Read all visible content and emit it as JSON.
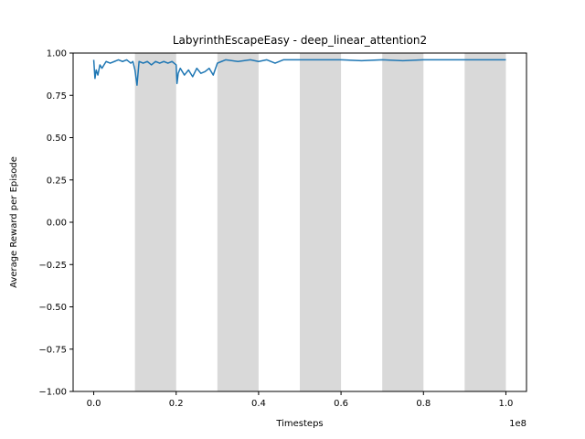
{
  "chart_data": {
    "type": "line",
    "title": "LabyrinthEscapeEasy - deep_linear_attention2",
    "xlabel": "Timesteps",
    "ylabel": "Average Reward per Episode",
    "x_multiplier_label": "1e8",
    "xlim": [
      -0.05,
      1.05
    ],
    "ylim": [
      -1.0,
      1.0
    ],
    "x_ticks": [
      0.0,
      0.2,
      0.4,
      0.6,
      0.8,
      1.0
    ],
    "x_tick_labels": [
      "0.0",
      "0.2",
      "0.4",
      "0.6",
      "0.8",
      "1.0"
    ],
    "y_ticks": [
      -1.0,
      -0.75,
      -0.5,
      -0.25,
      0.0,
      0.25,
      0.5,
      0.75,
      1.0
    ],
    "y_tick_labels": [
      "−1.00",
      "−0.75",
      "−0.50",
      "−0.25",
      "0.00",
      "0.25",
      "0.50",
      "0.75",
      "1.00"
    ],
    "grid": false,
    "shaded_regions": [
      [
        0.1,
        0.2
      ],
      [
        0.3,
        0.4
      ],
      [
        0.5,
        0.6
      ],
      [
        0.7,
        0.8
      ],
      [
        0.9,
        1.0
      ]
    ],
    "series": [
      {
        "color": "#1f77b4",
        "x": [
          0.0,
          0.003,
          0.006,
          0.01,
          0.015,
          0.02,
          0.03,
          0.04,
          0.05,
          0.06,
          0.07,
          0.08,
          0.09,
          0.095,
          0.1,
          0.105,
          0.11,
          0.12,
          0.13,
          0.14,
          0.15,
          0.16,
          0.17,
          0.18,
          0.19,
          0.2,
          0.202,
          0.205,
          0.21,
          0.22,
          0.23,
          0.24,
          0.25,
          0.26,
          0.27,
          0.28,
          0.29,
          0.3,
          0.31,
          0.32,
          0.35,
          0.38,
          0.4,
          0.42,
          0.44,
          0.46,
          0.5,
          0.55,
          0.6,
          0.65,
          0.7,
          0.75,
          0.8,
          0.85,
          0.9,
          0.95,
          1.0
        ],
        "y": [
          0.96,
          0.85,
          0.9,
          0.87,
          0.93,
          0.91,
          0.95,
          0.94,
          0.95,
          0.96,
          0.95,
          0.96,
          0.94,
          0.95,
          0.9,
          0.81,
          0.95,
          0.94,
          0.95,
          0.93,
          0.95,
          0.94,
          0.95,
          0.94,
          0.95,
          0.93,
          0.82,
          0.88,
          0.91,
          0.87,
          0.9,
          0.86,
          0.91,
          0.88,
          0.89,
          0.91,
          0.87,
          0.94,
          0.95,
          0.96,
          0.95,
          0.96,
          0.95,
          0.96,
          0.94,
          0.96,
          0.96,
          0.96,
          0.96,
          0.955,
          0.96,
          0.955,
          0.96,
          0.96,
          0.96,
          0.96,
          0.96
        ]
      }
    ]
  }
}
